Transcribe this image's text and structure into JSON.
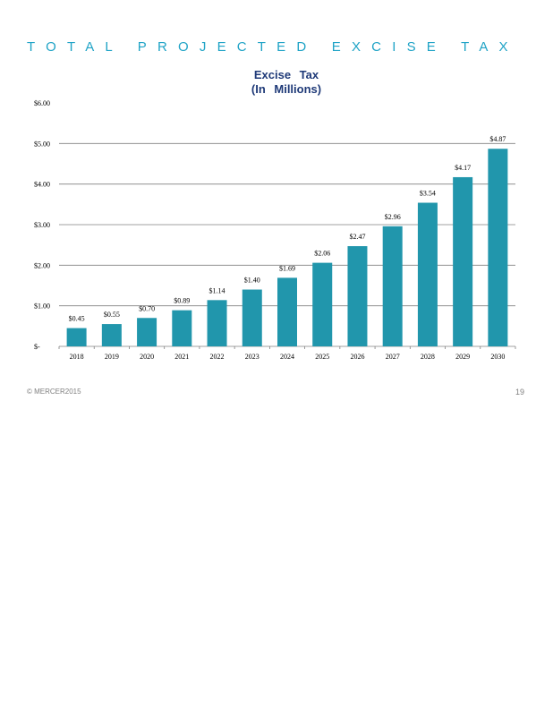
{
  "header": {
    "title": "TOTAL PROJECTED EXCISE TAX"
  },
  "chart_title": {
    "line1": "Excise Tax",
    "line2": "(In Millions)"
  },
  "footer": {
    "copyright": "© MERCER2015",
    "page_number": "19"
  },
  "colors": {
    "bar": "#2196ac",
    "title_accent": "#1fa3c6",
    "chart_title": "#1f3a78"
  },
  "chart_data": {
    "type": "bar",
    "title": "Excise Tax (In Millions)",
    "categories": [
      "2018",
      "2019",
      "2020",
      "2021",
      "2022",
      "2023",
      "2024",
      "2025",
      "2026",
      "2027",
      "2028",
      "2029",
      "2030"
    ],
    "values": [
      0.45,
      0.55,
      0.7,
      0.89,
      1.14,
      1.4,
      1.69,
      2.06,
      2.47,
      2.96,
      3.54,
      4.17,
      4.87
    ],
    "data_labels": [
      "$0.45",
      "$0.55",
      "$0.70",
      "$0.89",
      "$1.14",
      "$1.40",
      "$1.69",
      "$2.06",
      "$2.47",
      "$2.96",
      "$3.54",
      "$4.17",
      "$4.87"
    ],
    "y_ticks": [
      0,
      1,
      2,
      3,
      4,
      5,
      6
    ],
    "y_tick_labels": [
      "$-",
      "$1.00",
      "$2.00",
      "$3.00",
      "$4.00",
      "$5.00",
      "$6.00"
    ],
    "ylim": [
      0,
      6
    ],
    "grid": true,
    "legend": "none"
  }
}
